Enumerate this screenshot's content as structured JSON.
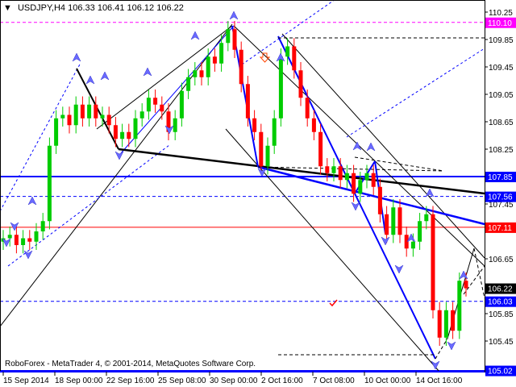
{
  "header": {
    "symbol": "USDJPY,H4",
    "ohlc": "106.33 106.41 106.12 106.22",
    "menu_icon": "triangle-down-icon"
  },
  "footer": {
    "copyright": "RoboForex - MetaTrader 4, © 2001-2014, MetaQuotes Software Corp."
  },
  "chart_data": {
    "type": "candlestick",
    "title": "USDJPY,H4",
    "x_tick_labels": [
      "15 Sep 2014",
      "18 Sep 00:00",
      "22 Sep 16:00",
      "25 Sep 08:00",
      "30 Sep 00:00",
      "2 Oct 16:00",
      "7 Oct 08:00",
      "10 Oct 00:00",
      "14 Oct 16:00"
    ],
    "y_tick_labels": [
      "110.25",
      "109.85",
      "109.45",
      "109.05",
      "108.65",
      "108.25",
      "107.45",
      "106.65",
      "105.85",
      "105.45"
    ],
    "ylim": [
      105.0,
      110.4
    ],
    "first_open": 106.9,
    "close": [
      106.95,
      107.0,
      106.85,
      106.95,
      106.9,
      107.05,
      107.2,
      108.3,
      108.7,
      108.75,
      108.6,
      108.9,
      108.7,
      108.9,
      108.7,
      108.75,
      108.6,
      108.4,
      108.5,
      108.4,
      108.7,
      108.8,
      109.0,
      108.9,
      108.8,
      108.5,
      108.7,
      109.1,
      109.3,
      109.4,
      109.3,
      109.6,
      109.5,
      109.8,
      110.0,
      109.7,
      109.2,
      108.7,
      108.5,
      108.0,
      108.3,
      108.7,
      109.6,
      109.75,
      109.4,
      109.0,
      108.7,
      108.5,
      108.0,
      107.9,
      108.0,
      107.8,
      107.9,
      107.6,
      107.8,
      107.9,
      107.7,
      107.3,
      107.0,
      107.4,
      107.0,
      106.8,
      106.9,
      107.2,
      107.3,
      105.9,
      105.5,
      105.9,
      105.6,
      106.33,
      106.22
    ],
    "last_bar": {
      "open": 106.33,
      "high": 106.41,
      "low": 106.12,
      "close": 106.22
    },
    "levels": [
      {
        "value": "110.10",
        "color": "#ff00ff",
        "style": "dashed"
      },
      {
        "value": "107.85",
        "color": "#0000ff",
        "style": "solid"
      },
      {
        "value": "107.56",
        "color": "#0000ff",
        "style": "dashed"
      },
      {
        "value": "107.11",
        "color": "#ff0000",
        "style": "solid"
      },
      {
        "value": "106.22",
        "color": "#000000",
        "style": "current"
      },
      {
        "value": "106.03",
        "color": "#0000ff",
        "style": "dashed"
      },
      {
        "value": "105.02",
        "color": "#0000ff",
        "style": "solid"
      }
    ],
    "colors": {
      "bull": "#00cc00",
      "bear": "#ff0000",
      "grid": "#000000",
      "trend_blue": "#0000ff",
      "trend_black": "#000000"
    },
    "grid": false
  }
}
